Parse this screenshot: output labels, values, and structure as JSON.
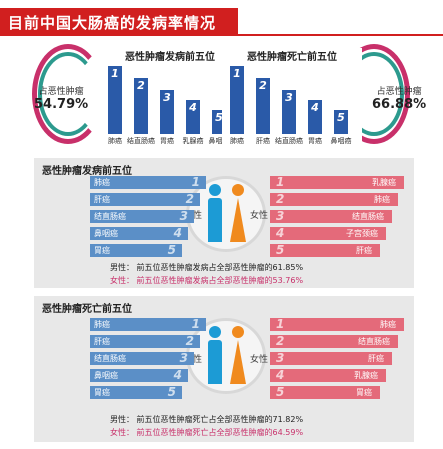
{
  "header": {
    "title": "目前中国大肠癌的发病率情况"
  },
  "left_stat": {
    "label": "占恶性肿瘤",
    "value": "54.79%"
  },
  "right_stat": {
    "label": "占恶性肿瘤",
    "value": "66.88%"
  },
  "incidence_panel": {
    "title": "恶性肿瘤发病前五位",
    "bars": [
      "1",
      "2",
      "3",
      "4",
      "5"
    ],
    "labels": [
      "肺癌",
      "结直肠癌",
      "胃癌",
      "乳腺癌",
      "鼻咽癌"
    ]
  },
  "mortality_panel": {
    "title": "恶性肿瘤死亡前五位",
    "bars": [
      "1",
      "2",
      "3",
      "4",
      "5"
    ],
    "labels": [
      "肺癌",
      "肝癌",
      "结直肠癌",
      "胃癌",
      "鼻咽癌"
    ]
  },
  "section1": {
    "title": "恶性肿瘤发病前五位",
    "male": [
      "肺癌",
      "肝癌",
      "结直肠癌",
      "鼻咽癌",
      "胃癌"
    ],
    "female": [
      "乳腺癌",
      "肺癌",
      "结直肠癌",
      "子宫颈癌",
      "肝癌"
    ],
    "nums": [
      "1",
      "2",
      "3",
      "4",
      "5"
    ],
    "male_label": "男性",
    "female_label": "女性",
    "note_male": "男性：  前五位恶性肿瘤发病占全部恶性肿瘤的61.85%",
    "note_female": "女性：  前五位恶性肿瘤发病占全部恶性肿瘤的53.76%"
  },
  "section2": {
    "title": "恶性肿瘤死亡前五位",
    "male": [
      "肺癌",
      "肝癌",
      "结直肠癌",
      "鼻咽癌",
      "胃癌"
    ],
    "female": [
      "肺癌",
      "结直肠癌",
      "肝癌",
      "乳腺癌",
      "胃癌"
    ],
    "nums": [
      "1",
      "2",
      "3",
      "4",
      "5"
    ],
    "male_label": "男性",
    "female_label": "女性",
    "note_male": "男性：  前五位恶性肿瘤死亡占全部恶性肿瘤的71.82%",
    "note_female": "女性：  前五位恶性肿瘤死亡占全部恶性肿瘤的64.59%"
  },
  "colors": {
    "accent": "#d11f1f",
    "male": "#5b8fc7",
    "female": "#e46a7a",
    "bar": "#2a5aa8"
  }
}
